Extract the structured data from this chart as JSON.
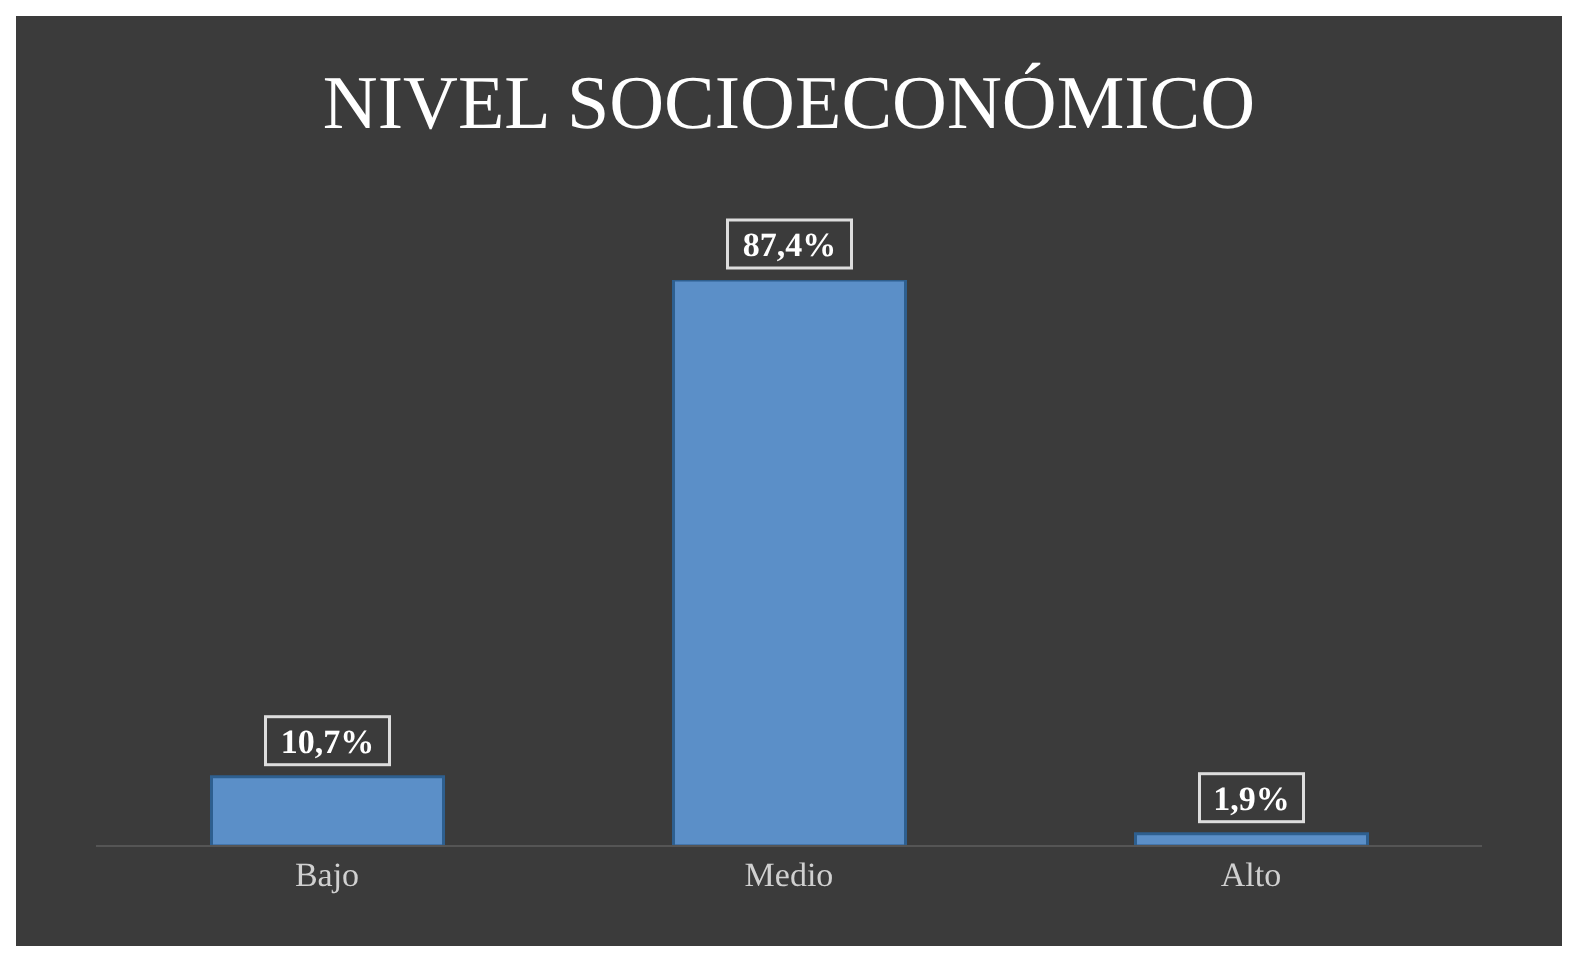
{
  "chart_data": {
    "type": "bar",
    "title": "NIVEL SOCIOECONÓMICO",
    "categories": [
      "Bajo",
      "Medio",
      "Alto"
    ],
    "values": [
      10.7,
      87.4,
      1.9
    ],
    "value_labels": [
      "10,7%",
      "87,4%",
      "1,9%"
    ],
    "color": "#5b8fc8"
  }
}
